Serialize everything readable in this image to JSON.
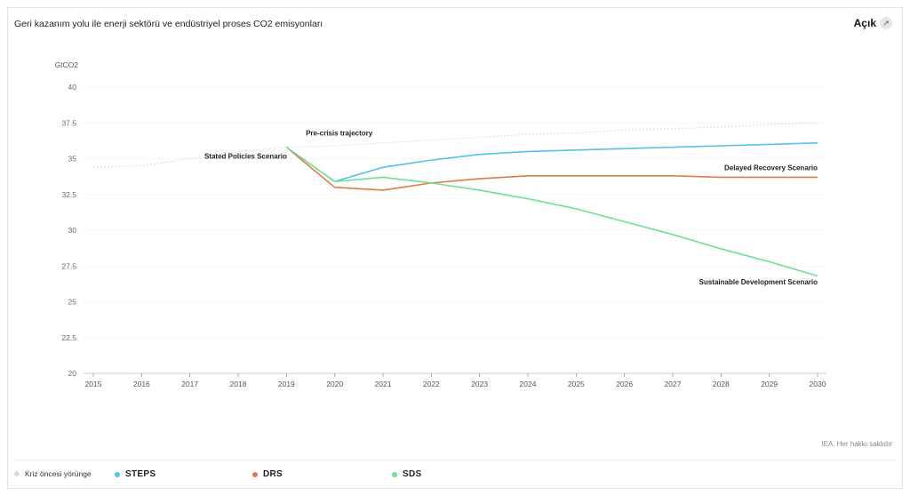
{
  "header": {
    "title": "Geri kazanım yolu ile enerji sektörü ve endüstriyel proses CO2 emisyonları",
    "open_label": "Açık"
  },
  "footer": {
    "copyright": "IEA. Her hakkı saklıdır"
  },
  "legend": [
    {
      "label": "Kriz öncesi yörünge",
      "color": "#d9d9d9"
    },
    {
      "label": "STEPS",
      "color": "#4fc3e8"
    },
    {
      "label": "DRS",
      "color": "#e07a4f"
    },
    {
      "label": "SDS",
      "color": "#6ee095"
    }
  ],
  "chart_data": {
    "type": "line",
    "title": "Geri kazanım yolu ile enerji sektörü ve endüstriyel proses CO2 emisyonları",
    "ylabel": "GtCO2",
    "xlabel": "",
    "x": [
      2015,
      2016,
      2017,
      2018,
      2019,
      2020,
      2021,
      2022,
      2023,
      2024,
      2025,
      2026,
      2027,
      2028,
      2029,
      2030
    ],
    "ylim": [
      20,
      40
    ],
    "yticks": [
      "20",
      "22.5",
      "25",
      "27.5",
      "30",
      "32.5",
      "35",
      "37.5",
      "40"
    ],
    "grid": true,
    "series": [
      {
        "name": "Kriz öncesi yörünge",
        "color": "#d9d9d9",
        "dashed": true,
        "x": [
          2015,
          2016,
          2017,
          2018,
          2019,
          2020,
          2021,
          2022,
          2023,
          2024,
          2025,
          2026,
          2027,
          2028,
          2029,
          2030
        ],
        "values": [
          34.4,
          34.5,
          35.0,
          35.5,
          35.8,
          35.9,
          36.1,
          36.3,
          36.5,
          36.7,
          36.8,
          37.0,
          37.1,
          37.2,
          37.4,
          37.5
        ]
      },
      {
        "name": "STEPS",
        "color": "#4fc3e8",
        "x": [
          2019,
          2020,
          2021,
          2022,
          2023,
          2024,
          2025,
          2026,
          2027,
          2028,
          2029,
          2030
        ],
        "values": [
          35.8,
          33.4,
          34.4,
          34.9,
          35.3,
          35.5,
          35.6,
          35.7,
          35.8,
          35.9,
          36.0,
          36.1
        ]
      },
      {
        "name": "DRS",
        "color": "#e07a4f",
        "x": [
          2019,
          2020,
          2021,
          2022,
          2023,
          2024,
          2025,
          2026,
          2027,
          2028,
          2029,
          2030
        ],
        "values": [
          35.8,
          33.0,
          32.8,
          33.3,
          33.6,
          33.8,
          33.8,
          33.8,
          33.8,
          33.7,
          33.7,
          33.7
        ]
      },
      {
        "name": "SDS",
        "color": "#6ee095",
        "x": [
          2019,
          2020,
          2021,
          2022,
          2023,
          2024,
          2025,
          2026,
          2027,
          2028,
          2029,
          2030
        ],
        "values": [
          35.8,
          33.4,
          33.7,
          33.3,
          32.8,
          32.2,
          31.5,
          30.6,
          29.7,
          28.7,
          27.8,
          26.8
        ]
      }
    ],
    "annotations": [
      {
        "text": "Pre-crisis trajectory",
        "x": 2019.4,
        "y": 36.6
      },
      {
        "text": "Stated Policies Scenario",
        "x": 2017.3,
        "y": 35.0
      },
      {
        "text": "Delayed Recovery Scenario",
        "x": 2030,
        "y": 34.2
      },
      {
        "text": "Sustainable Development Scenario",
        "x": 2030,
        "y": 26.2
      }
    ]
  }
}
